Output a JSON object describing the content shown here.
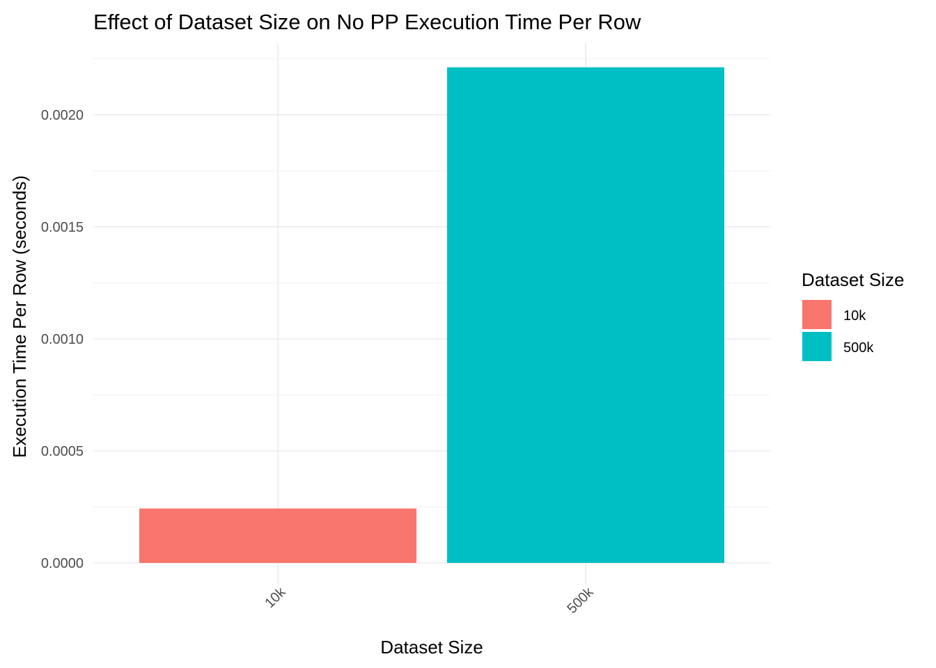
{
  "chart_data": {
    "type": "bar",
    "title": "Effect of Dataset Size on No PP Execution Time Per Row",
    "xlabel": "Dataset Size",
    "ylabel": "Execution Time Per Row (seconds)",
    "categories": [
      "10k",
      "500k"
    ],
    "values": [
      0.000243,
      0.002212
    ],
    "ylim": [
      0,
      0.00226
    ],
    "yticks": [
      "0.0000",
      "0.0005",
      "0.0010",
      "0.0015",
      "0.0020"
    ],
    "ytick_values": [
      0,
      0.0005,
      0.001,
      0.0015,
      0.002
    ],
    "grid": true,
    "legend": {
      "title": "Dataset Size",
      "position": "right",
      "entries": [
        "10k",
        "500k"
      ]
    },
    "colors": [
      "#F8766D",
      "#00BFC4"
    ]
  }
}
